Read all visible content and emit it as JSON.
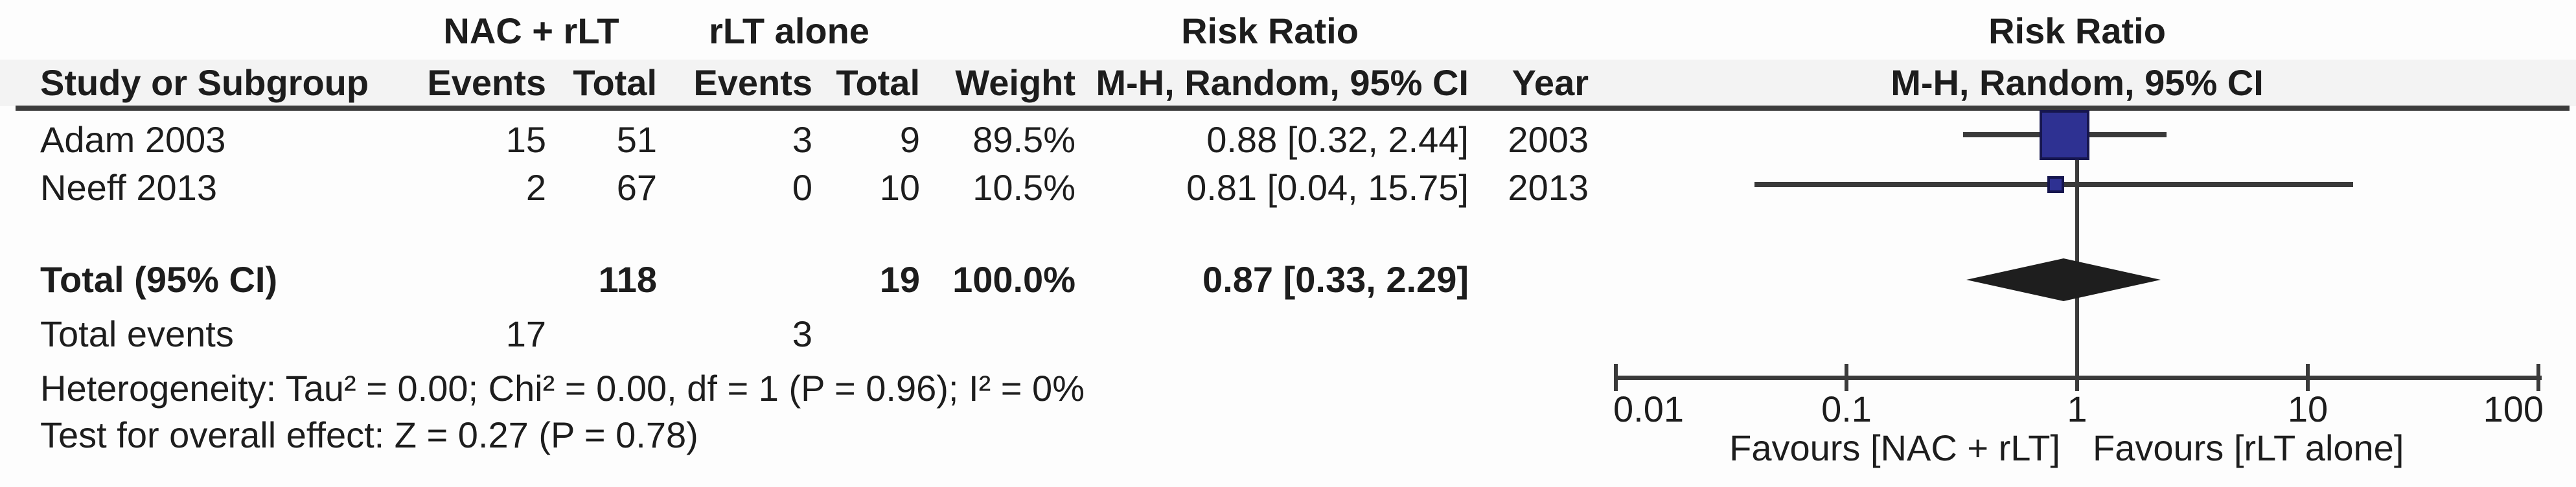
{
  "header": {
    "group1": "NAC + rLT",
    "group2": "rLT alone",
    "risk_ratio": "Risk Ratio",
    "study": "Study or Subgroup",
    "events": "Events",
    "total": "Total",
    "weight": "Weight",
    "mh_random": "M-H, Random, 95% CI",
    "year": "Year"
  },
  "studies": [
    {
      "name": "Adam 2003",
      "events1": "15",
      "total1": "51",
      "events2": "3",
      "total2": "9",
      "weight": "89.5%",
      "rr_ci": "0.88 [0.32, 2.44]",
      "year": "2003"
    },
    {
      "name": "Neeff 2013",
      "events1": "2",
      "total1": "67",
      "events2": "0",
      "total2": "10",
      "weight": "10.5%",
      "rr_ci": "0.81 [0.04, 15.75]",
      "year": "2013"
    }
  ],
  "total_row": {
    "label": "Total (95% CI)",
    "total1": "118",
    "total2": "19",
    "weight": "100.0%",
    "rr_ci": "0.87 [0.33, 2.29]"
  },
  "total_events_row": {
    "label": "Total events",
    "events1": "17",
    "events2": "3"
  },
  "heterogeneity_line": "Heterogeneity: Tau² = 0.00; Chi² = 0.00, df = 1 (P = 0.96); I² = 0%",
  "overall_effect_line": "Test for overall effect: Z = 0.27 (P = 0.78)",
  "chart_data": {
    "type": "forest",
    "x_scale": "log10",
    "xlim": [
      0.01,
      100
    ],
    "axis_ticks": [
      0.01,
      0.1,
      1,
      10,
      100
    ],
    "effect_measure": "Risk Ratio M-H, Random, 95% CI",
    "studies": [
      {
        "name": "Adam 2003",
        "rr": 0.88,
        "ci_low": 0.32,
        "ci_high": 2.44,
        "weight_pct": 89.5,
        "year": 2003
      },
      {
        "name": "Neeff 2013",
        "rr": 0.81,
        "ci_low": 0.04,
        "ci_high": 15.75,
        "weight_pct": 10.5,
        "year": 2013
      }
    ],
    "overall": {
      "label": "Total (95% CI)",
      "rr": 0.87,
      "ci_low": 0.33,
      "ci_high": 2.29
    },
    "favours_left": "Favours [NAC + rLT]",
    "favours_right": "Favours [rLT alone]",
    "marker_color": "#2e3192",
    "line_color": "#3a3a3a",
    "diamond_color": "#1e1e1e",
    "legend_position": "none",
    "grid": false
  }
}
